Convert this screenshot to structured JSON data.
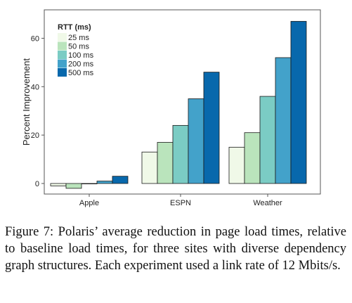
{
  "chart_data": {
    "type": "bar",
    "categories": [
      "Apple",
      "ESPN",
      "Weather"
    ],
    "series": [
      {
        "name": "25 ms",
        "values": [
          -1,
          13,
          15
        ]
      },
      {
        "name": "50 ms",
        "values": [
          -2,
          17,
          21
        ]
      },
      {
        "name": "100 ms",
        "values": [
          0,
          24,
          36
        ]
      },
      {
        "name": "200 ms",
        "values": [
          1,
          35,
          52
        ]
      },
      {
        "name": "500 ms",
        "values": [
          3,
          46,
          67
        ]
      }
    ],
    "colors": [
      "#f0f9e8",
      "#bae4bc",
      "#7bccc4",
      "#43a2ca",
      "#0868ac"
    ],
    "legend_title": "RTT (ms)",
    "legend_position": "top-left",
    "ylabel": "Percent Improvement",
    "xlabel": "",
    "ylim": [
      -3,
      70
    ],
    "yticks": [
      0,
      20,
      40,
      60
    ],
    "grid": false
  },
  "caption": "Figure 7: Polaris’ average reduction in page load times, relative to baseline load times, for three sites with diverse dependency graph structures. Each experiment used a link rate of 12 Mbits/s."
}
